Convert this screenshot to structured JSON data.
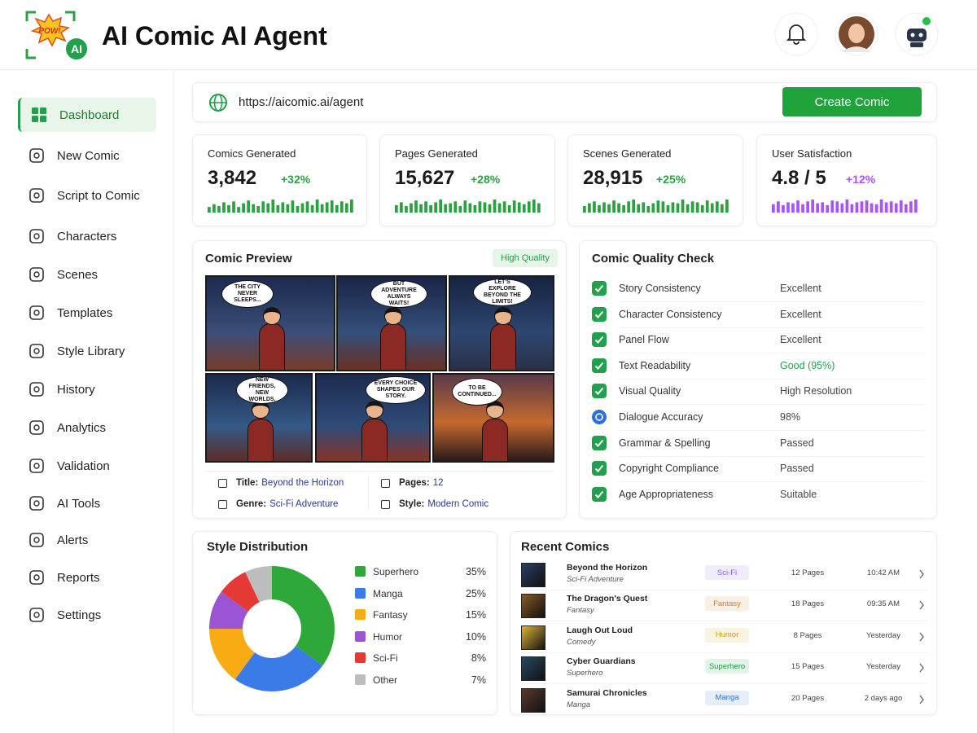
{
  "header": {
    "logo_text": "POW!",
    "logo_badge": "AI",
    "title": "AI Comic AI Agent"
  },
  "sidebar": {
    "items": [
      "Dashboard",
      "New Comic",
      "Script to Comic",
      "Characters",
      "Scenes",
      "Templates",
      "Style Library",
      "History",
      "Analytics",
      "Validation",
      "AI Tools",
      "Alerts",
      "Reports",
      "Settings"
    ]
  },
  "url_bar": {
    "url": "https://aicomic.ai/agent",
    "button": "Create Comic"
  },
  "stats": [
    {
      "label": "Comics Generated",
      "value": "3,842",
      "change": "+32%",
      "color": "#2ea043",
      "spark": [
        6,
        9,
        7,
        11,
        8,
        12,
        6,
        10,
        13,
        9,
        7,
        12,
        10,
        14,
        8,
        11,
        9,
        13,
        7,
        10,
        12,
        8,
        14,
        9,
        11,
        13,
        8,
        12,
        10,
        14
      ]
    },
    {
      "label": "Pages Generated",
      "value": "15,627",
      "change": "+28%",
      "color": "#2ea043",
      "spark": [
        8,
        11,
        7,
        10,
        13,
        9,
        12,
        8,
        11,
        14,
        9,
        10,
        12,
        7,
        13,
        10,
        8,
        12,
        11,
        9,
        14,
        10,
        12,
        8,
        13,
        11,
        9,
        12,
        14,
        10
      ]
    },
    {
      "label": "Scenes Generated",
      "value": "28,915",
      "change": "+25%",
      "color": "#2ea043",
      "spark": [
        7,
        10,
        12,
        8,
        11,
        9,
        13,
        10,
        8,
        12,
        14,
        9,
        11,
        7,
        10,
        13,
        12,
        8,
        11,
        10,
        14,
        9,
        12,
        11,
        8,
        13,
        10,
        12,
        9,
        14
      ]
    },
    {
      "label": "User Satisfaction",
      "value": "4.8 / 5",
      "change": "+12%",
      "color": "#a855f7",
      "spark": [
        9,
        12,
        8,
        11,
        10,
        13,
        9,
        12,
        14,
        10,
        11,
        8,
        13,
        12,
        10,
        14,
        9,
        11,
        12,
        13,
        10,
        9,
        14,
        11,
        12,
        10,
        13,
        9,
        12,
        14
      ]
    }
  ],
  "comic_preview": {
    "title": "Comic Preview",
    "badge": "High Quality",
    "panels": [
      "THE CITY NEVER SLEEPS...",
      "BUT ADVENTURE ALWAYS WAITS!",
      "LET'S EXPLORE BEYOND THE LIMITS!",
      "NEW FRIENDS, NEW WORLDS.",
      "EVERY CHOICE SHAPES OUR STORY.",
      "TO BE CONTINUED..."
    ],
    "meta": [
      {
        "label": "Title:",
        "value": "Beyond the Horizon"
      },
      {
        "label": "Pages:",
        "value": "12"
      },
      {
        "label": "Genre:",
        "value": "Sci-Fi Adventure"
      },
      {
        "label": "Style:",
        "value": "Modern Comic"
      }
    ]
  },
  "quality_check": {
    "title": "Comic Quality Check",
    "rows": [
      {
        "label": "Story Consistency",
        "value": "Excellent",
        "icon_color": "#22a04b",
        "value_color": "#444444"
      },
      {
        "label": "Character Consistency",
        "value": "Excellent",
        "icon_color": "#22a04b",
        "value_color": "#444444"
      },
      {
        "label": "Panel Flow",
        "value": "Excellent",
        "icon_color": "#22a04b",
        "value_color": "#444444"
      },
      {
        "label": "Text Readability",
        "value": "Good (95%)",
        "icon_color": "#22a04b",
        "value_color": "#22a04b"
      },
      {
        "label": "Visual Quality",
        "value": "High Resolution",
        "icon_color": "#22a04b",
        "value_color": "#444444"
      },
      {
        "label": "Dialogue Accuracy",
        "value": "98%",
        "icon_color": "#2f6fe0",
        "value_color": "#444444"
      },
      {
        "label": "Grammar & Spelling",
        "value": "Passed",
        "icon_color": "#22a04b",
        "value_color": "#444444"
      },
      {
        "label": "Copyright Compliance",
        "value": "Passed",
        "icon_color": "#22a04b",
        "value_color": "#444444"
      },
      {
        "label": "Age Appropriateness",
        "value": "Suitable",
        "icon_color": "#22a04b",
        "value_color": "#444444"
      }
    ]
  },
  "chart_data": {
    "type": "pie",
    "title": "Style Distribution",
    "categories": [
      "Superhero",
      "Manga",
      "Fantasy",
      "Humor",
      "Sci-Fi",
      "Other"
    ],
    "values": [
      35,
      25,
      15,
      10,
      8,
      7
    ],
    "value_labels": [
      "35%",
      "25%",
      "15%",
      "10%",
      "8%",
      "7%"
    ],
    "colors": [
      "#2fa83a",
      "#3b7be8",
      "#f9ab13",
      "#9b55d4",
      "#e53935",
      "#bdbdbd"
    ]
  },
  "recent_comics": {
    "title": "Recent Comics",
    "rows": [
      {
        "title": "Beyond the Horizon",
        "genre": "Sci-Fi Adventure",
        "tag": "Sci-Fi",
        "tag_color": "#8b5cf6",
        "pages": "12 Pages",
        "time": "10:42 AM",
        "thumb_color": "#2c3e66"
      },
      {
        "title": "The Dragon's Quest",
        "genre": "Fantasy",
        "tag": "Fantasy",
        "tag_color": "#e07b1a",
        "pages": "18 Pages",
        "time": "09:35 AM",
        "thumb_color": "#8a5a22"
      },
      {
        "title": "Laugh Out Loud",
        "genre": "Comedy",
        "tag": "Humor",
        "tag_color": "#d39b00",
        "pages": "8 Pages",
        "time": "Yesterday",
        "thumb_color": "#e0b43a"
      },
      {
        "title": "Cyber Guardians",
        "genre": "Superhero",
        "tag": "Superhero",
        "tag_color": "#1f9a3b",
        "pages": "15 Pages",
        "time": "Yesterday",
        "thumb_color": "#284a63"
      },
      {
        "title": "Samurai Chronicles",
        "genre": "Manga",
        "tag": "Manga",
        "tag_color": "#2f6fe0",
        "pages": "20 Pages",
        "time": "2 days ago",
        "thumb_color": "#5b3a2c"
      }
    ]
  }
}
